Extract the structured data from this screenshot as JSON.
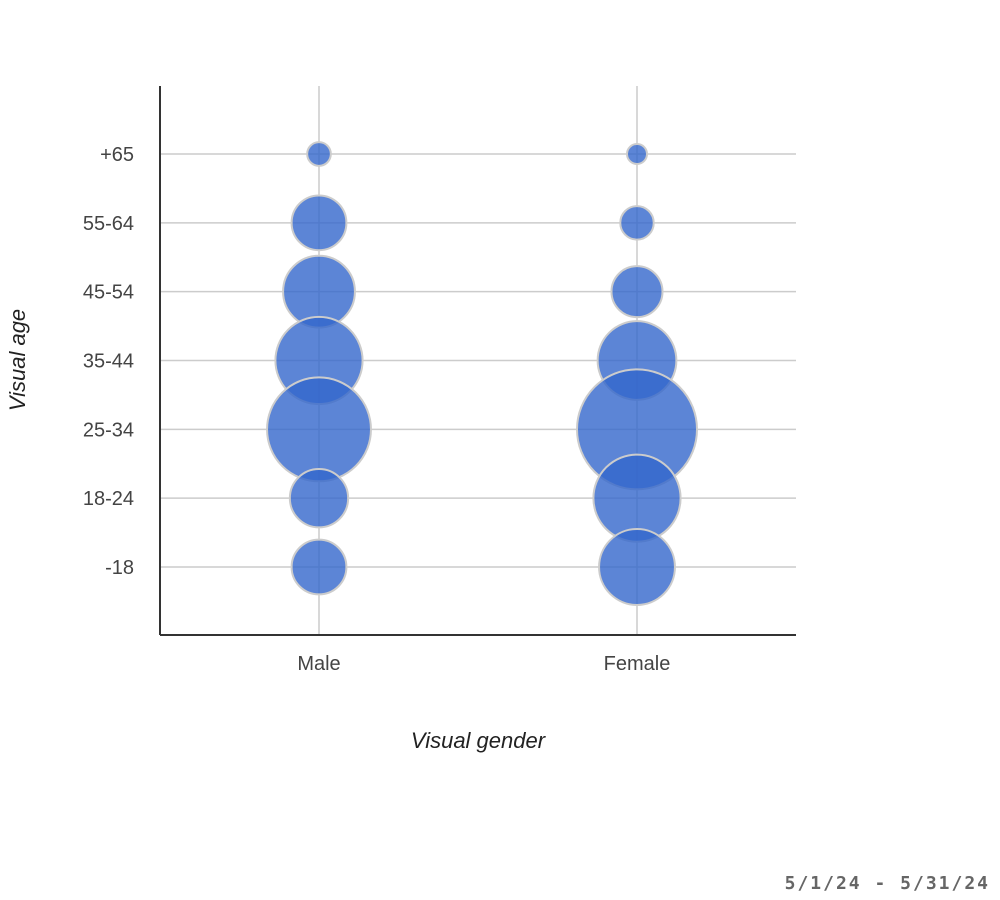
{
  "chart_data": {
    "type": "bubble",
    "xlabel": "Visual gender",
    "ylabel": "Visual age",
    "categories_x": [
      "Male",
      "Female"
    ],
    "categories_y": [
      "-18",
      "18-24",
      "25-34",
      "35-44",
      "45-54",
      "55-64",
      "+65"
    ],
    "grid": true,
    "series": [
      {
        "values": [
          {
            "x": "Male",
            "y": "+65",
            "size": 1.4
          },
          {
            "x": "Male",
            "y": "55-64",
            "size": 7.5
          },
          {
            "x": "Male",
            "y": "45-54",
            "size": 12.9
          },
          {
            "x": "Male",
            "y": "35-44",
            "size": 19.0
          },
          {
            "x": "Male",
            "y": "25-34",
            "size": 27.0
          },
          {
            "x": "Male",
            "y": "18-24",
            "size": 8.5
          },
          {
            "x": "Male",
            "y": "-18",
            "size": 7.5
          },
          {
            "x": "Female",
            "y": "+65",
            "size": 1.0
          },
          {
            "x": "Female",
            "y": "55-64",
            "size": 2.8
          },
          {
            "x": "Female",
            "y": "45-54",
            "size": 6.5
          },
          {
            "x": "Female",
            "y": "35-44",
            "size": 15.5
          },
          {
            "x": "Female",
            "y": "25-34",
            "size": 36.0
          },
          {
            "x": "Female",
            "y": "18-24",
            "size": 19.0
          },
          {
            "x": "Female",
            "y": "-18",
            "size": 14.4
          }
        ]
      }
    ],
    "colors": {
      "bubble_fill": "#3366CC",
      "bubble_stroke": "#CCCCCC",
      "grid": "#CCCCCC",
      "axis": "#333333"
    }
  },
  "footer": {
    "date_range": "5/1/24 - 5/31/24"
  }
}
